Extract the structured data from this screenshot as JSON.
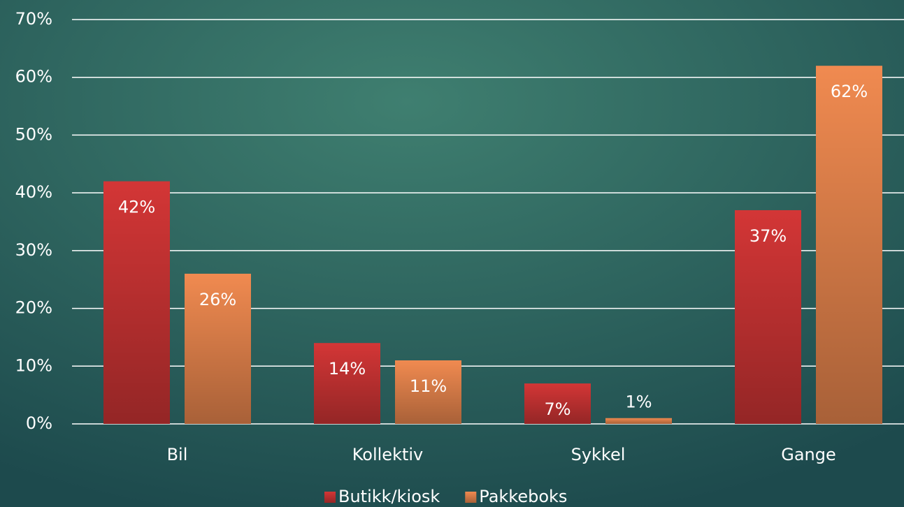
{
  "chart_data": {
    "type": "bar",
    "categories": [
      "Bil",
      "Kollektiv",
      "Sykkel",
      "Gange"
    ],
    "series": [
      {
        "name": "Butikk/kiosk",
        "color": "#d33636",
        "values": [
          42,
          14,
          7,
          37
        ],
        "value_labels": [
          "42%",
          "14%",
          "7%",
          "37%"
        ]
      },
      {
        "name": "Pakkeboks",
        "color": "#f08a50",
        "values": [
          26,
          11,
          1,
          62
        ],
        "value_labels": [
          "26%",
          "11%",
          "1%",
          "62%"
        ]
      }
    ],
    "ylim": [
      0,
      70
    ],
    "yticks": [
      {
        "value": 0,
        "label": "0%"
      },
      {
        "value": 10,
        "label": "10%"
      },
      {
        "value": 20,
        "label": "20%"
      },
      {
        "value": 30,
        "label": "30%"
      },
      {
        "value": 40,
        "label": "40%"
      },
      {
        "value": 50,
        "label": "50%"
      },
      {
        "value": 60,
        "label": "60%"
      },
      {
        "value": 70,
        "label": "70%"
      }
    ],
    "grid": true,
    "legend": "bottom"
  }
}
